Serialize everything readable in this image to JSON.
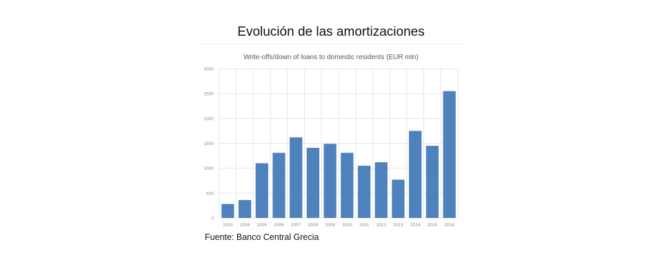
{
  "page": {
    "title": "Evolución de las amortizaciones",
    "source": "Fuente: Banco Central Grecia"
  },
  "colors": {
    "bar": "#4f81bd",
    "grid": "#e6e6e6",
    "tick_text": "#8a8a8a",
    "subtitle_text": "#595959"
  },
  "chart_data": {
    "type": "bar",
    "title": "Write-offs/down  of loans to domestic residents (EUR mln)",
    "xlabel": "",
    "ylabel": "",
    "categories": [
      "2003",
      "2004",
      "2005",
      "2006",
      "2007",
      "2008",
      "2009",
      "2010",
      "2011",
      "2012",
      "2013",
      "2014",
      "2015",
      "2016"
    ],
    "values": [
      280,
      360,
      1100,
      1310,
      1620,
      1410,
      1490,
      1310,
      1050,
      1120,
      770,
      1750,
      1450,
      2550
    ],
    "ylim": [
      0,
      3000
    ],
    "yticks": [
      0,
      500,
      1000,
      1500,
      2000,
      2500,
      3000
    ],
    "grid": true,
    "legend": "none"
  }
}
